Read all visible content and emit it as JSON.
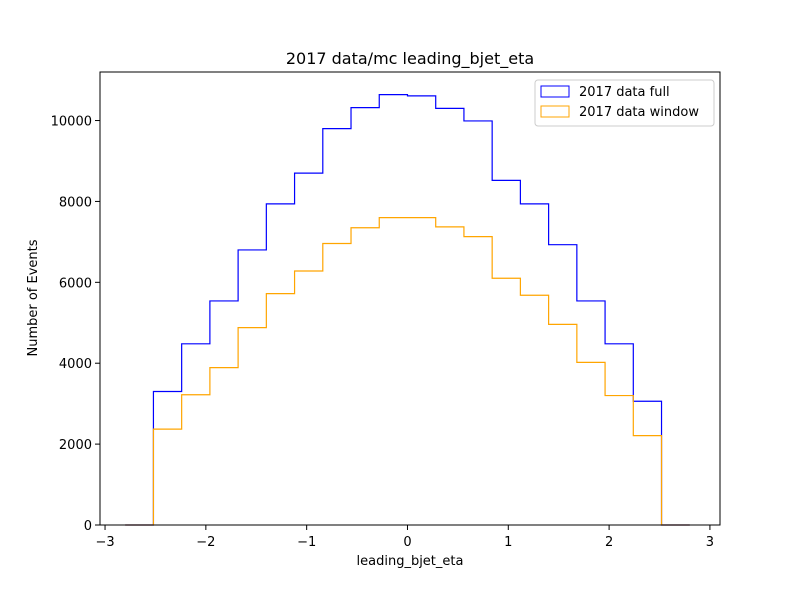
{
  "chart_data": {
    "type": "histogram-step",
    "title": "2017 data/mc leading_bjet_eta",
    "xlabel": "leading_bjet_eta",
    "ylabel": "Number of Events",
    "xlim": [
      -3.05,
      3.1
    ],
    "ylim": [
      0,
      11200
    ],
    "xticks": [
      -3,
      -2,
      -1,
      0,
      1,
      2,
      3
    ],
    "yticks": [
      0,
      2000,
      4000,
      6000,
      8000,
      10000
    ],
    "grid": false,
    "legend_position": "upper right",
    "bin_edges": [
      -2.8,
      -2.52,
      -2.24,
      -1.96,
      -1.68,
      -1.4,
      -1.12,
      -0.84,
      -0.56,
      -0.28,
      0.0,
      0.28,
      0.56,
      0.84,
      1.12,
      1.4,
      1.68,
      1.96,
      2.24,
      2.52,
      2.8
    ],
    "series": [
      {
        "name": "2017 data full",
        "color": "#0000ff",
        "values": [
          0,
          3300,
          4480,
          5540,
          6800,
          7940,
          8700,
          9800,
          10320,
          10640,
          10610,
          10300,
          9990,
          8520,
          7940,
          6930,
          5540,
          4480,
          3060,
          0
        ]
      },
      {
        "name": "2017 data window",
        "color": "#ffa500",
        "values": [
          0,
          2370,
          3220,
          3890,
          4880,
          5720,
          6280,
          6960,
          7350,
          7600,
          7600,
          7370,
          7130,
          6100,
          5680,
          4960,
          4020,
          3200,
          2210,
          0
        ]
      }
    ]
  }
}
